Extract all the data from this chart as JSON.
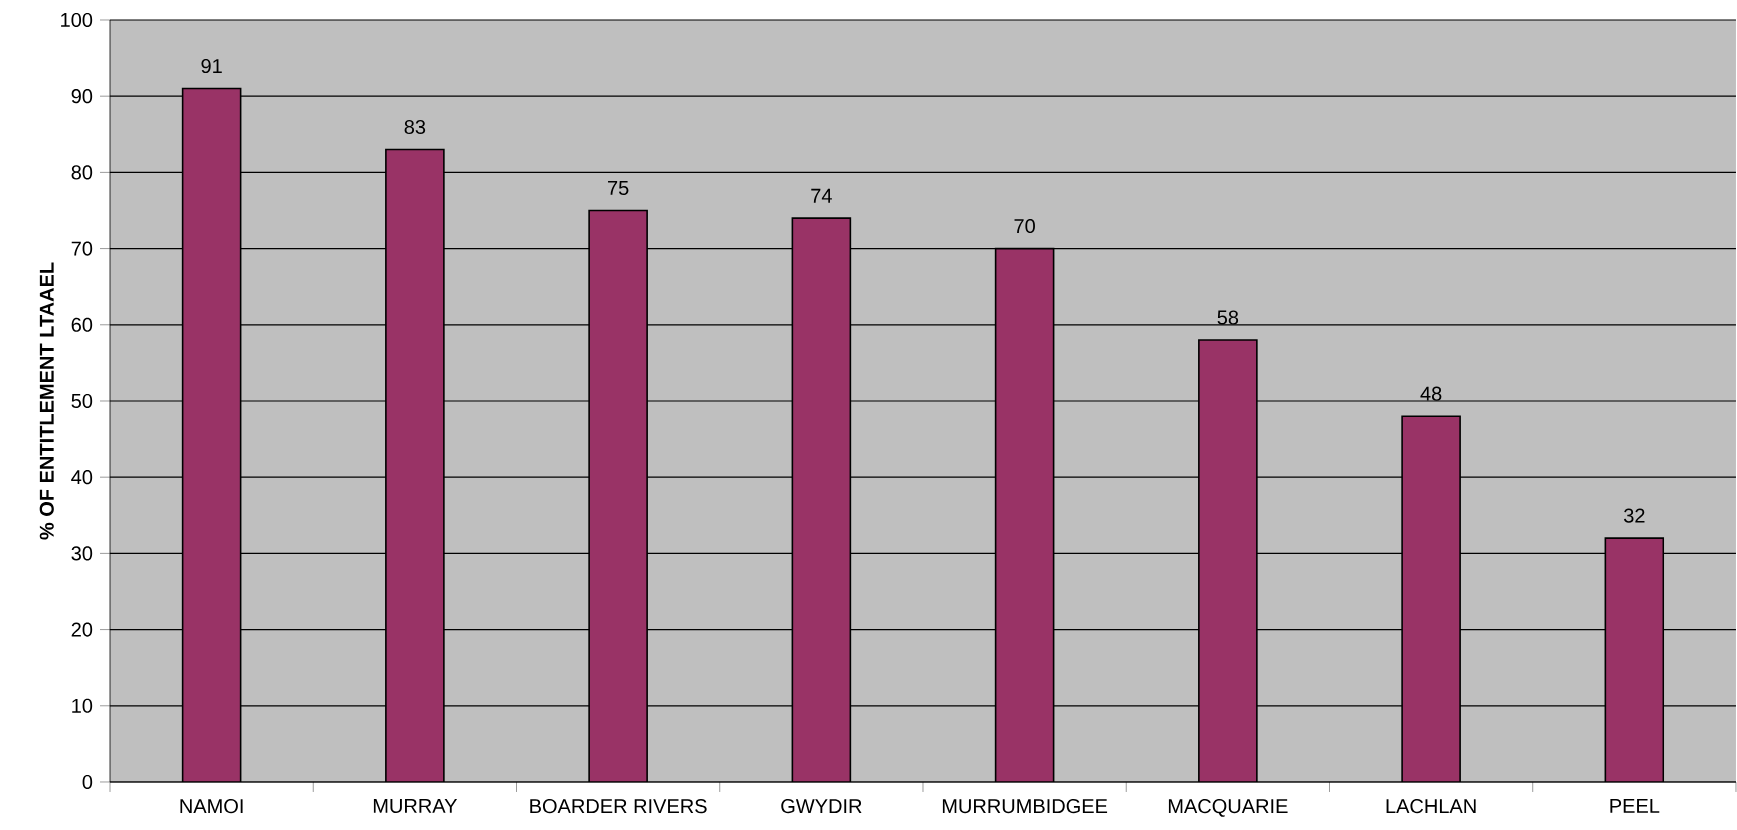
{
  "chart_data": {
    "type": "bar",
    "ylabel": "% OF ENTITLEMENT LTAAEL",
    "categories": [
      "NAMOI",
      "MURRAY",
      "BOARDER RIVERS",
      "GWYDIR",
      "MURRUMBIDGEE",
      "MACQUARIE",
      "LACHLAN",
      "PEEL"
    ],
    "values": [
      91,
      83,
      75,
      74,
      70,
      58,
      48,
      32
    ],
    "color": "#993366",
    "ylim": [
      0,
      100
    ],
    "yticks": [
      0,
      10,
      20,
      30,
      40,
      50,
      60,
      70,
      80,
      90,
      100
    ],
    "grid": "y",
    "data_labels": true
  }
}
